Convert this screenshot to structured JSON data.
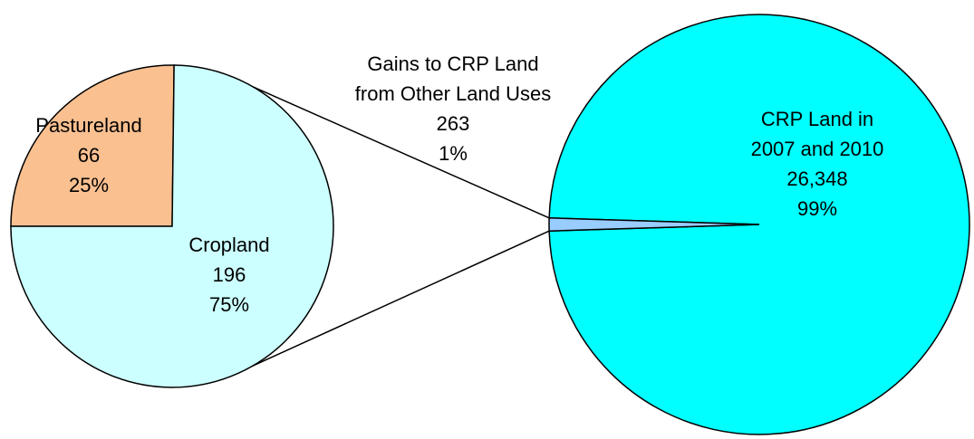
{
  "chart_data": [
    {
      "type": "pie",
      "categories": [
        [
          "CRP Land in",
          "2007 and 2010"
        ],
        [
          "Gains to CRP Land",
          "from Other Land Uses"
        ]
      ],
      "values": [
        26348,
        263
      ],
      "value_labels": [
        "26,348",
        "263"
      ],
      "percents": [
        99,
        1
      ],
      "percent_labels": [
        "99%",
        "1%"
      ],
      "colors": [
        "#00ffff",
        "#99ccff"
      ]
    },
    {
      "type": "pie",
      "categories": [
        [
          "Pastureland"
        ],
        [
          "Cropland"
        ]
      ],
      "values": [
        66,
        196
      ],
      "value_labels": [
        "66",
        "196"
      ],
      "percents": [
        25,
        75
      ],
      "percent_labels": [
        "25%",
        "75%"
      ],
      "colors": [
        "#fac090",
        "#ccffff"
      ]
    }
  ]
}
